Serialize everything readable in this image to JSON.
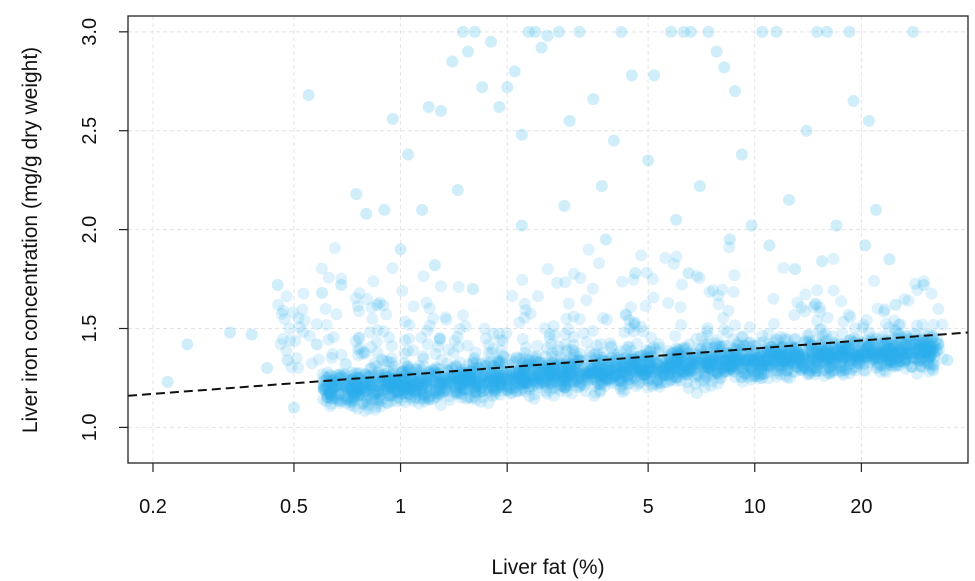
{
  "chart_data": {
    "type": "scatter",
    "title": "",
    "xlabel": "Liver fat (%)",
    "ylabel": "Liver iron concentration (mg/g dry weight)",
    "x_scale": "log",
    "xlim": [
      0.17,
      40
    ],
    "ylim": [
      0.82,
      3.08
    ],
    "x_ticks": [
      0.2,
      0.5,
      1,
      2,
      5,
      10,
      20
    ],
    "x_tick_labels": [
      "0.2",
      "0.5",
      "1",
      "2",
      "5",
      "10",
      "20"
    ],
    "y_ticks": [
      1.0,
      1.5,
      2.0,
      2.5,
      3.0
    ],
    "y_tick_labels": [
      "1.0",
      "1.5",
      "2.0",
      "2.5",
      "3.0"
    ],
    "grid": true,
    "legend": "none",
    "point_color": "#29b1ea",
    "point_opacity": 0.16,
    "trend_line": {
      "style": "dashed",
      "color": "#111111",
      "points": [
        [
          0.17,
          1.16
        ],
        [
          40,
          1.48
        ]
      ]
    },
    "series": [
      {
        "points": [
          [
            0.22,
            1.23
          ],
          [
            0.25,
            1.42
          ],
          [
            0.33,
            1.48
          ],
          [
            0.38,
            1.47
          ],
          [
            0.42,
            1.3
          ],
          [
            0.45,
            1.72
          ],
          [
            0.48,
            1.34
          ],
          [
            0.55,
            2.68
          ],
          [
            0.6,
            1.68
          ],
          [
            0.65,
            1.21
          ],
          [
            0.7,
            1.32
          ],
          [
            0.75,
            2.18
          ],
          [
            0.8,
            2.08
          ],
          [
            0.9,
            2.1
          ],
          [
            0.95,
            2.56
          ],
          [
            1.05,
            2.38
          ],
          [
            1.15,
            2.1
          ],
          [
            1.2,
            2.62
          ],
          [
            1.3,
            2.6
          ],
          [
            1.4,
            2.85
          ],
          [
            1.5,
            3.0
          ],
          [
            1.55,
            2.9
          ],
          [
            1.62,
            3.0
          ],
          [
            1.7,
            2.72
          ],
          [
            1.8,
            2.95
          ],
          [
            1.9,
            2.62
          ],
          [
            2.0,
            2.72
          ],
          [
            2.1,
            2.8
          ],
          [
            2.2,
            2.48
          ],
          [
            2.3,
            3.0
          ],
          [
            2.4,
            3.0
          ],
          [
            2.5,
            2.92
          ],
          [
            2.6,
            2.98
          ],
          [
            2.8,
            3.0
          ],
          [
            3.0,
            2.55
          ],
          [
            3.2,
            3.0
          ],
          [
            3.5,
            2.66
          ],
          [
            3.7,
            2.22
          ],
          [
            4.0,
            2.45
          ],
          [
            4.2,
            3.0
          ],
          [
            4.5,
            2.78
          ],
          [
            5.0,
            2.35
          ],
          [
            5.2,
            2.78
          ],
          [
            5.8,
            3.0
          ],
          [
            6.0,
            2.05
          ],
          [
            6.3,
            3.0
          ],
          [
            6.6,
            3.0
          ],
          [
            7.0,
            2.22
          ],
          [
            7.4,
            3.0
          ],
          [
            7.8,
            2.9
          ],
          [
            8.2,
            2.82
          ],
          [
            8.8,
            2.7
          ],
          [
            9.2,
            2.38
          ],
          [
            10.5,
            3.0
          ],
          [
            11.5,
            3.0
          ],
          [
            12.5,
            2.15
          ],
          [
            14,
            2.5
          ],
          [
            15,
            3.0
          ],
          [
            16,
            3.0
          ],
          [
            18.5,
            3.0
          ],
          [
            19,
            2.65
          ],
          [
            21,
            2.55
          ],
          [
            22,
            2.1
          ],
          [
            24,
            1.85
          ],
          [
            28,
            3.0
          ],
          [
            30,
            1.72
          ],
          [
            33,
            1.42
          ],
          [
            35,
            1.34
          ],
          [
            0.5,
            1.1
          ],
          [
            0.58,
            1.42
          ],
          [
            0.68,
            1.72
          ],
          [
            0.78,
            1.12
          ],
          [
            0.86,
            1.62
          ],
          [
            1.0,
            1.9
          ],
          [
            1.25,
            1.82
          ],
          [
            1.6,
            1.7
          ],
          [
            1.45,
            2.2
          ],
          [
            2.2,
            2.02
          ],
          [
            2.9,
            2.12
          ],
          [
            3.8,
            1.95
          ],
          [
            4.6,
            1.78
          ],
          [
            6.5,
            1.78
          ],
          [
            8.5,
            1.95
          ],
          [
            9.8,
            2.02
          ],
          [
            11,
            1.92
          ],
          [
            13,
            1.8
          ],
          [
            15.5,
            1.84
          ],
          [
            17,
            2.02
          ],
          [
            20.5,
            1.92
          ],
          [
            25,
            1.62
          ]
        ]
      }
    ]
  }
}
